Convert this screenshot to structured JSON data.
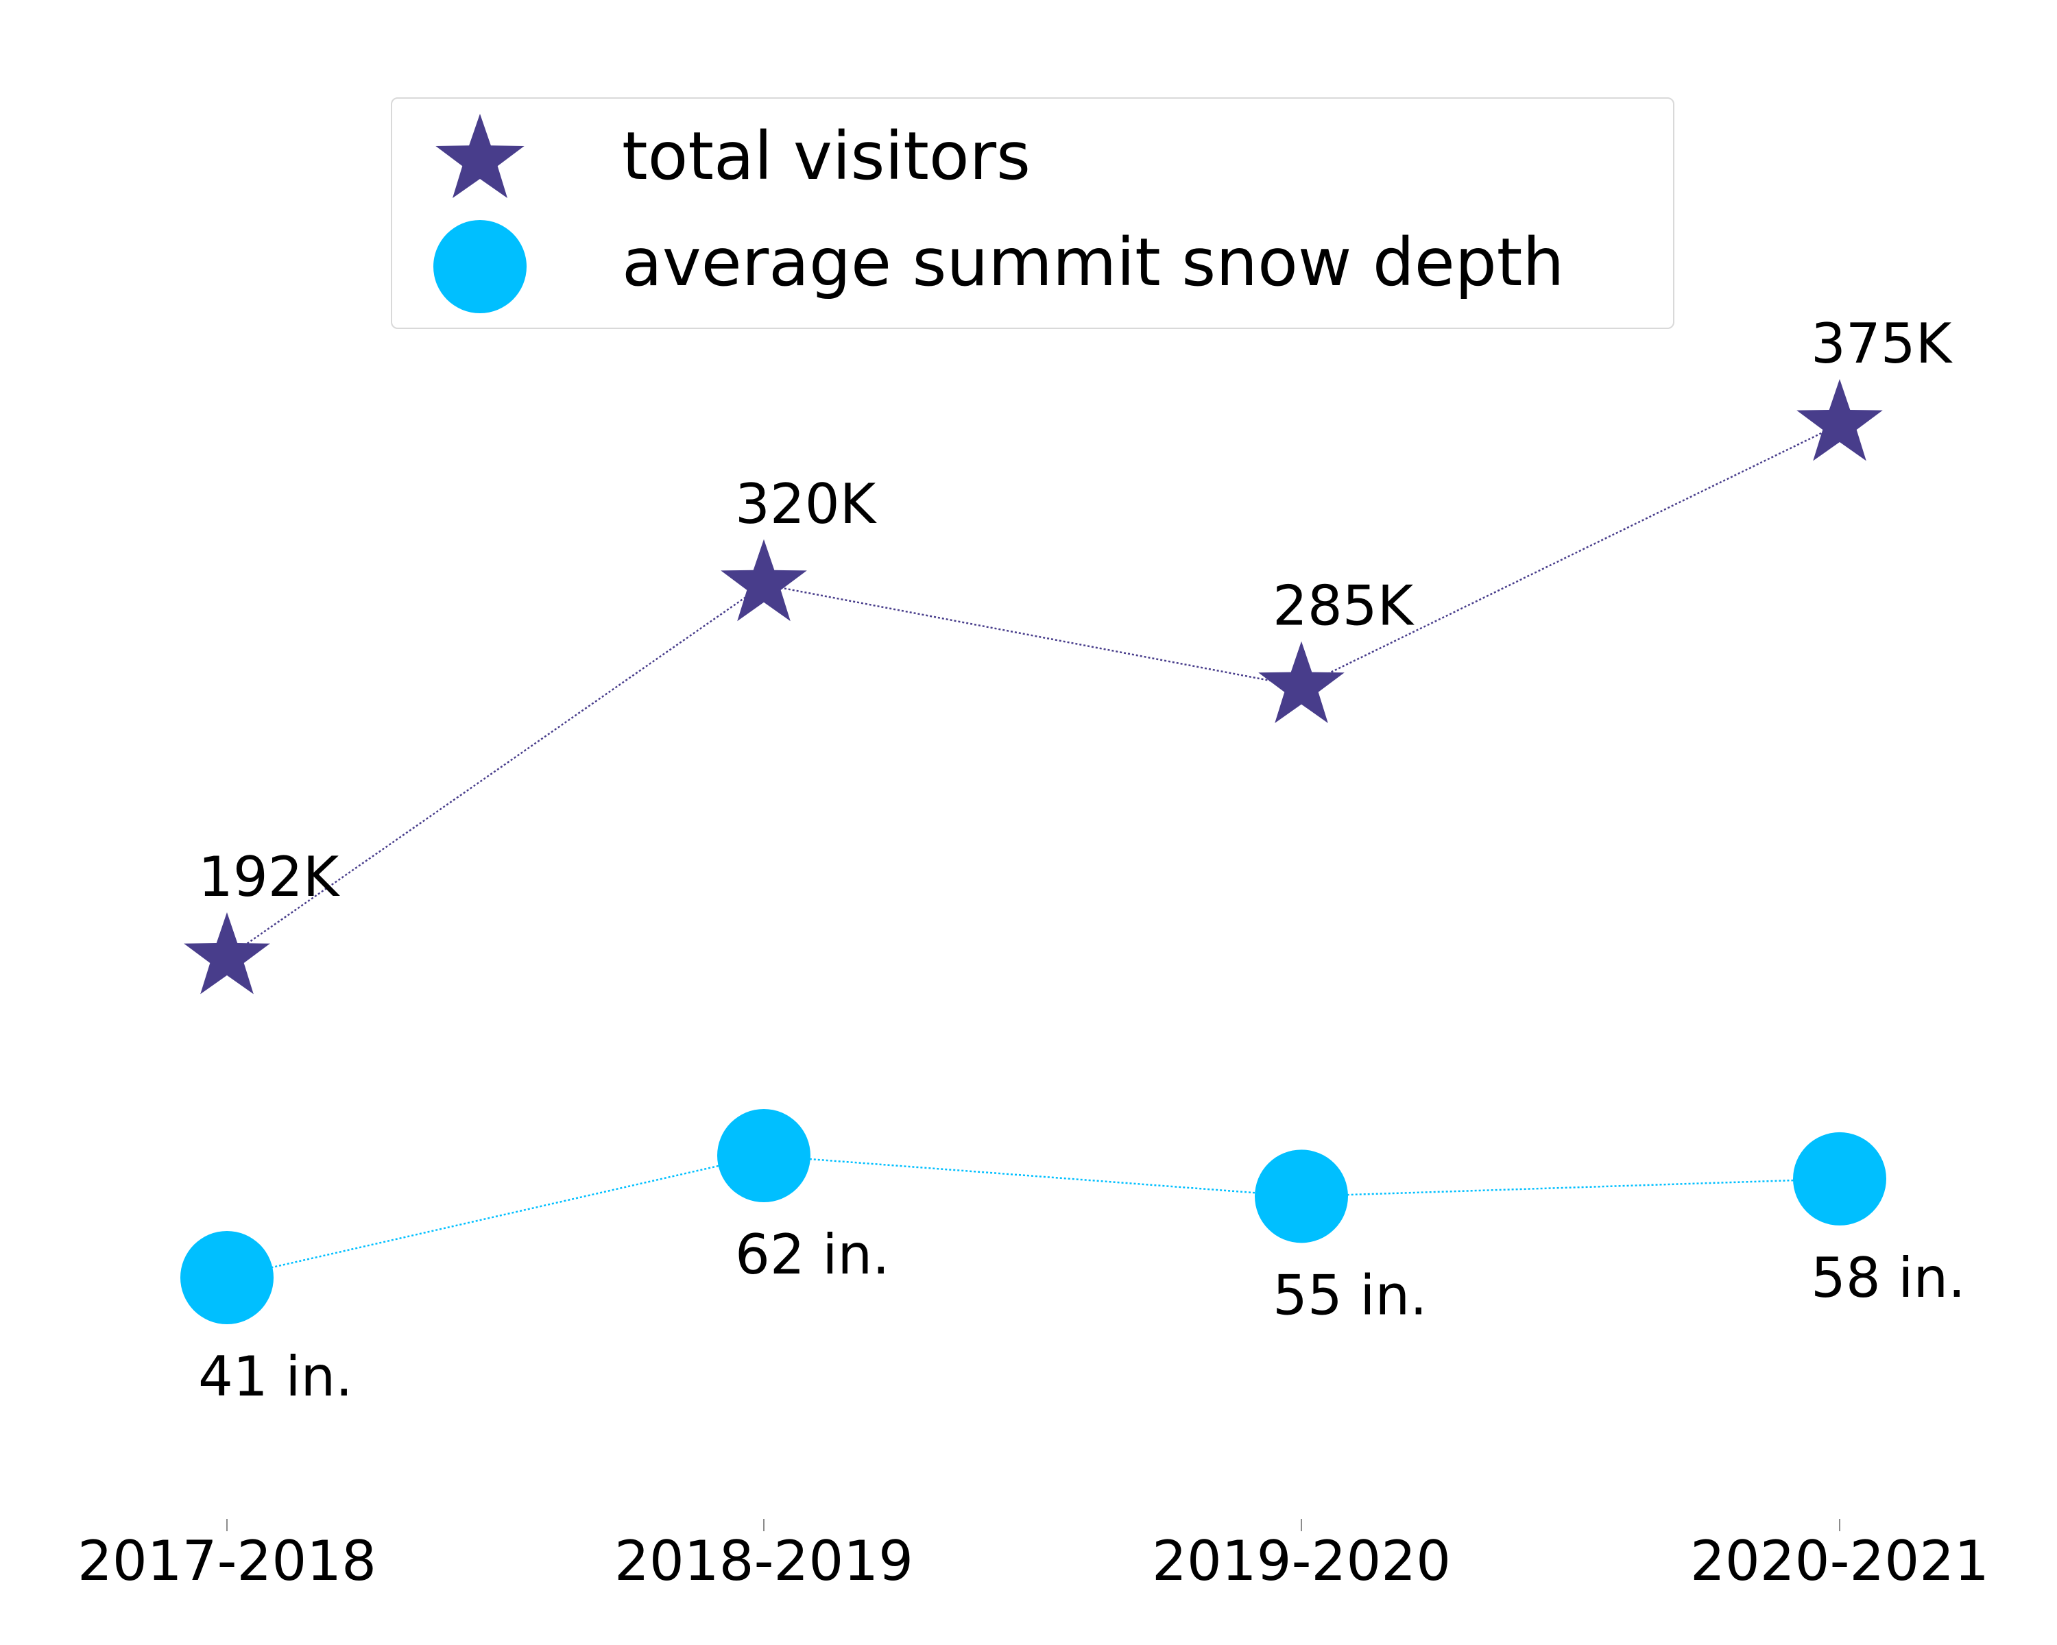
{
  "chart_data": {
    "type": "line",
    "categories": [
      "2017-2018",
      "2018-2019",
      "2019-2020",
      "2020-2021"
    ],
    "series": [
      {
        "name": "total visitors",
        "marker": "star",
        "color": "#483d8b",
        "values": [
          192,
          320,
          285,
          375
        ],
        "labels": [
          "192K",
          "320K",
          "285K",
          "375K"
        ]
      },
      {
        "name": "average summit snow depth",
        "marker": "circle",
        "color": "#00bfff",
        "values": [
          41,
          62,
          55,
          58
        ],
        "labels": [
          "41 in.",
          "62 in.",
          "55 in.",
          "58 in."
        ]
      }
    ],
    "title": "",
    "xlabel": "",
    "ylabel": "",
    "grid": false,
    "legend": "top-center"
  }
}
